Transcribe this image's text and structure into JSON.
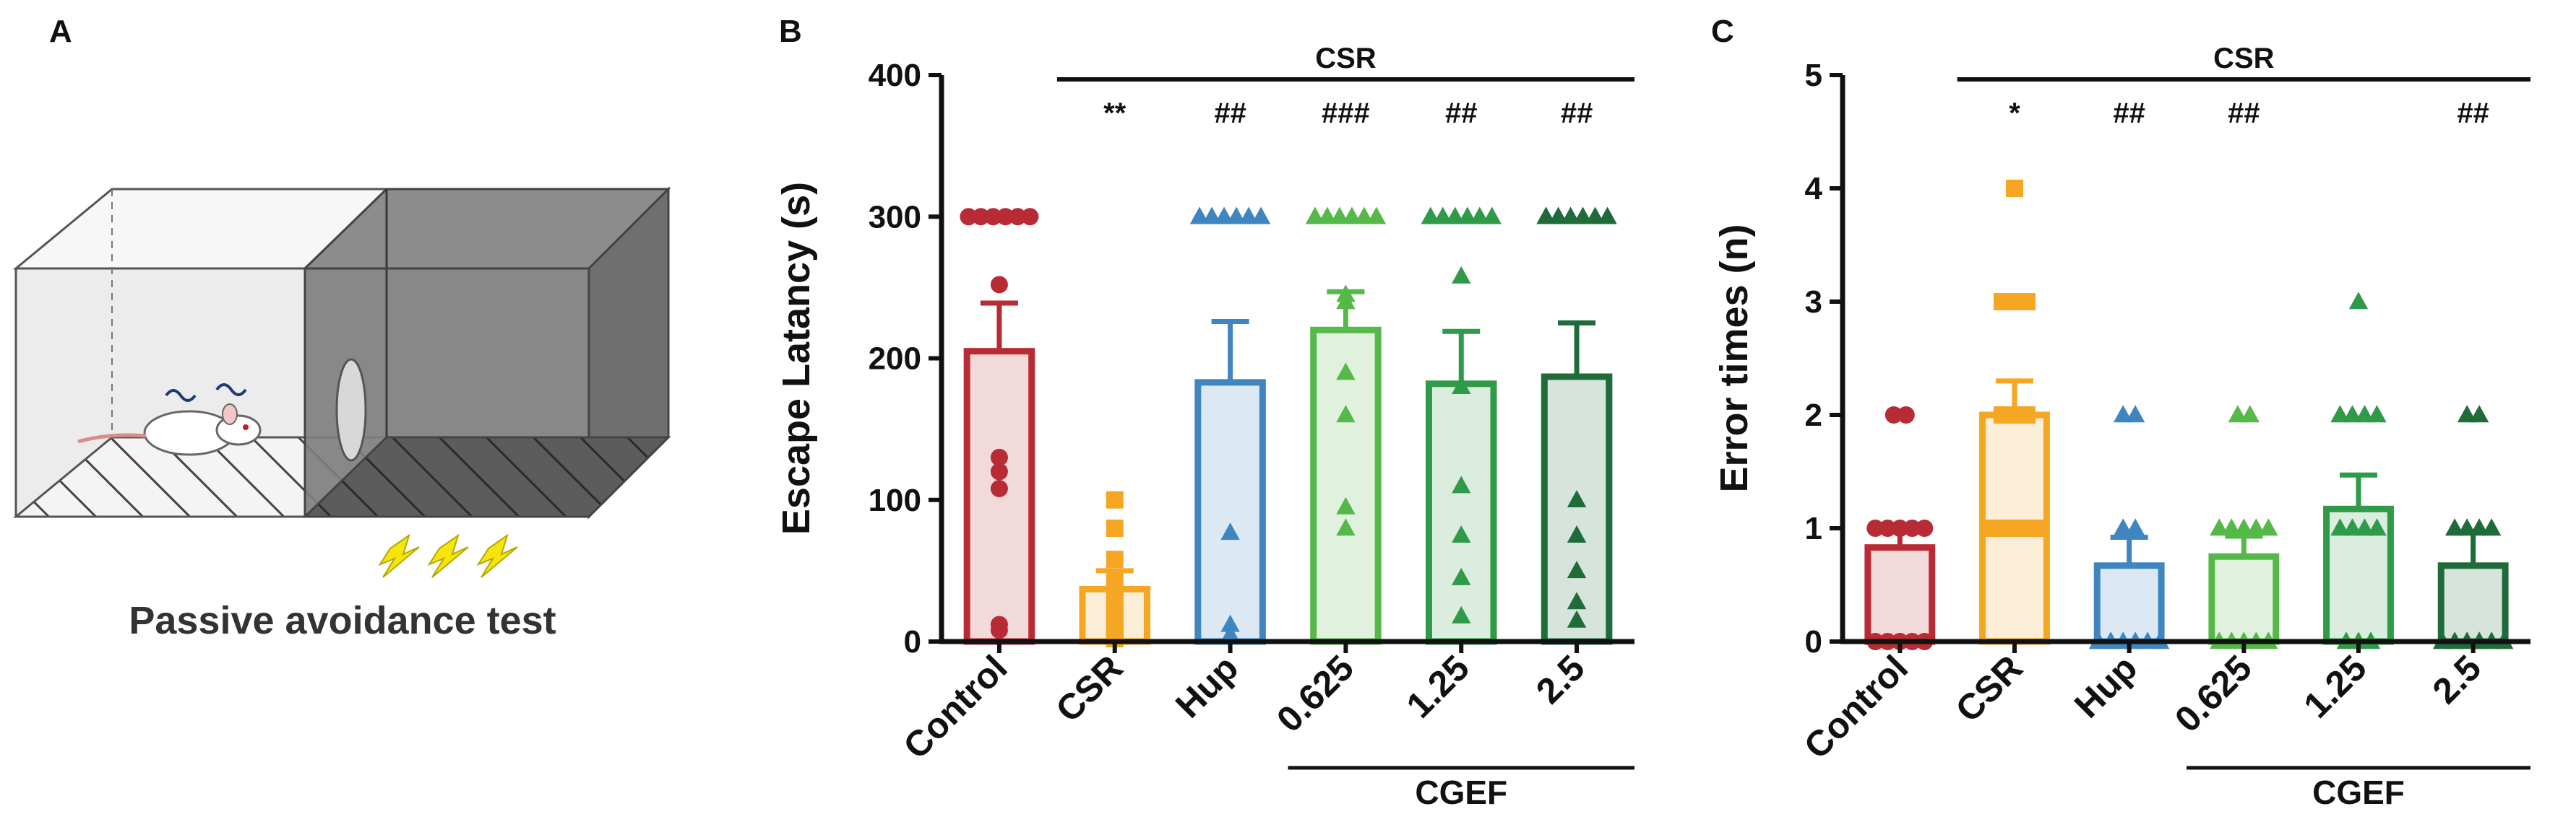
{
  "panels": {
    "a": {
      "letter": "A",
      "caption": "Passive avoidance test"
    },
    "b": {
      "letter": "B"
    },
    "c": {
      "letter": "C"
    }
  },
  "colors": {
    "Control": "#b92b34",
    "CSR": "#f5a623",
    "Hup": "#3f86c0",
    "0.625": "#55b94a",
    "1.25": "#2f9a48",
    "2.5": "#1f6b3a",
    "axis": "#111111"
  },
  "chart_data": [
    {
      "type": "bar",
      "panel": "B",
      "categories": [
        "Control",
        "CSR",
        "Hup",
        "0.625",
        "1.25",
        "2.5"
      ],
      "values": [
        205,
        37,
        183,
        220,
        182,
        187
      ],
      "errors": [
        34,
        13,
        43,
        27,
        37,
        38
      ],
      "points": [
        [
          300,
          300,
          300,
          300,
          300,
          300,
          252,
          130,
          120,
          108,
          12,
          8
        ],
        [
          100,
          80,
          58,
          45,
          35,
          28,
          20,
          15,
          10,
          5,
          3,
          2
        ],
        [
          300,
          300,
          300,
          300,
          300,
          300,
          300,
          77,
          12,
          5,
          3
        ],
        [
          300,
          300,
          300,
          300,
          300,
          300,
          245,
          240,
          190,
          160,
          95,
          80
        ],
        [
          300,
          300,
          300,
          300,
          300,
          300,
          258,
          180,
          110,
          75,
          45,
          18
        ],
        [
          300,
          300,
          300,
          300,
          300,
          300,
          300,
          100,
          75,
          50,
          28,
          15
        ]
      ],
      "markers": [
        "circle",
        "square",
        "triangle",
        "triangle",
        "triangle",
        "triangle"
      ],
      "ylabel": "Escape Latancy (s)",
      "yticks": [
        0,
        100,
        200,
        300,
        400
      ],
      "ylim": [
        0,
        400
      ],
      "significance": [
        "",
        "**",
        "##",
        "###",
        "##",
        "##"
      ],
      "bracket_label": "CSR",
      "group_label": "CGEF"
    },
    {
      "type": "bar",
      "panel": "C",
      "categories": [
        "Control",
        "CSR",
        "Hup",
        "0.625",
        "1.25",
        "2.5"
      ],
      "values": [
        0.83,
        2.0,
        0.67,
        0.75,
        1.17,
        0.67
      ],
      "errors": [
        0.2,
        0.3,
        0.25,
        0.18,
        0.3,
        0.3
      ],
      "points": [
        [
          2,
          2,
          1,
          1,
          1,
          1,
          1,
          0,
          0,
          0,
          0,
          0
        ],
        [
          4,
          3,
          3,
          3,
          2,
          2,
          2,
          1,
          1,
          1,
          1,
          1
        ],
        [
          2,
          2,
          1,
          1,
          0,
          0,
          0,
          0,
          0,
          0,
          0,
          0
        ],
        [
          2,
          2,
          1,
          1,
          1,
          1,
          1,
          0,
          0,
          0,
          0,
          0
        ],
        [
          3,
          2,
          2,
          2,
          2,
          1,
          1,
          1,
          1,
          0,
          0,
          0
        ],
        [
          2,
          2,
          1,
          1,
          1,
          1,
          0,
          0,
          0,
          0,
          0,
          0
        ]
      ],
      "markers": [
        "circle",
        "square",
        "triangle",
        "triangle",
        "triangle",
        "triangle"
      ],
      "ylabel": "Error times (n)",
      "yticks": [
        0,
        1,
        2,
        3,
        4,
        5
      ],
      "ylim": [
        0,
        5
      ],
      "significance": [
        "",
        "*",
        "##",
        "##",
        "",
        "##"
      ],
      "bracket_label": "CSR",
      "group_label": "CGEF"
    }
  ]
}
